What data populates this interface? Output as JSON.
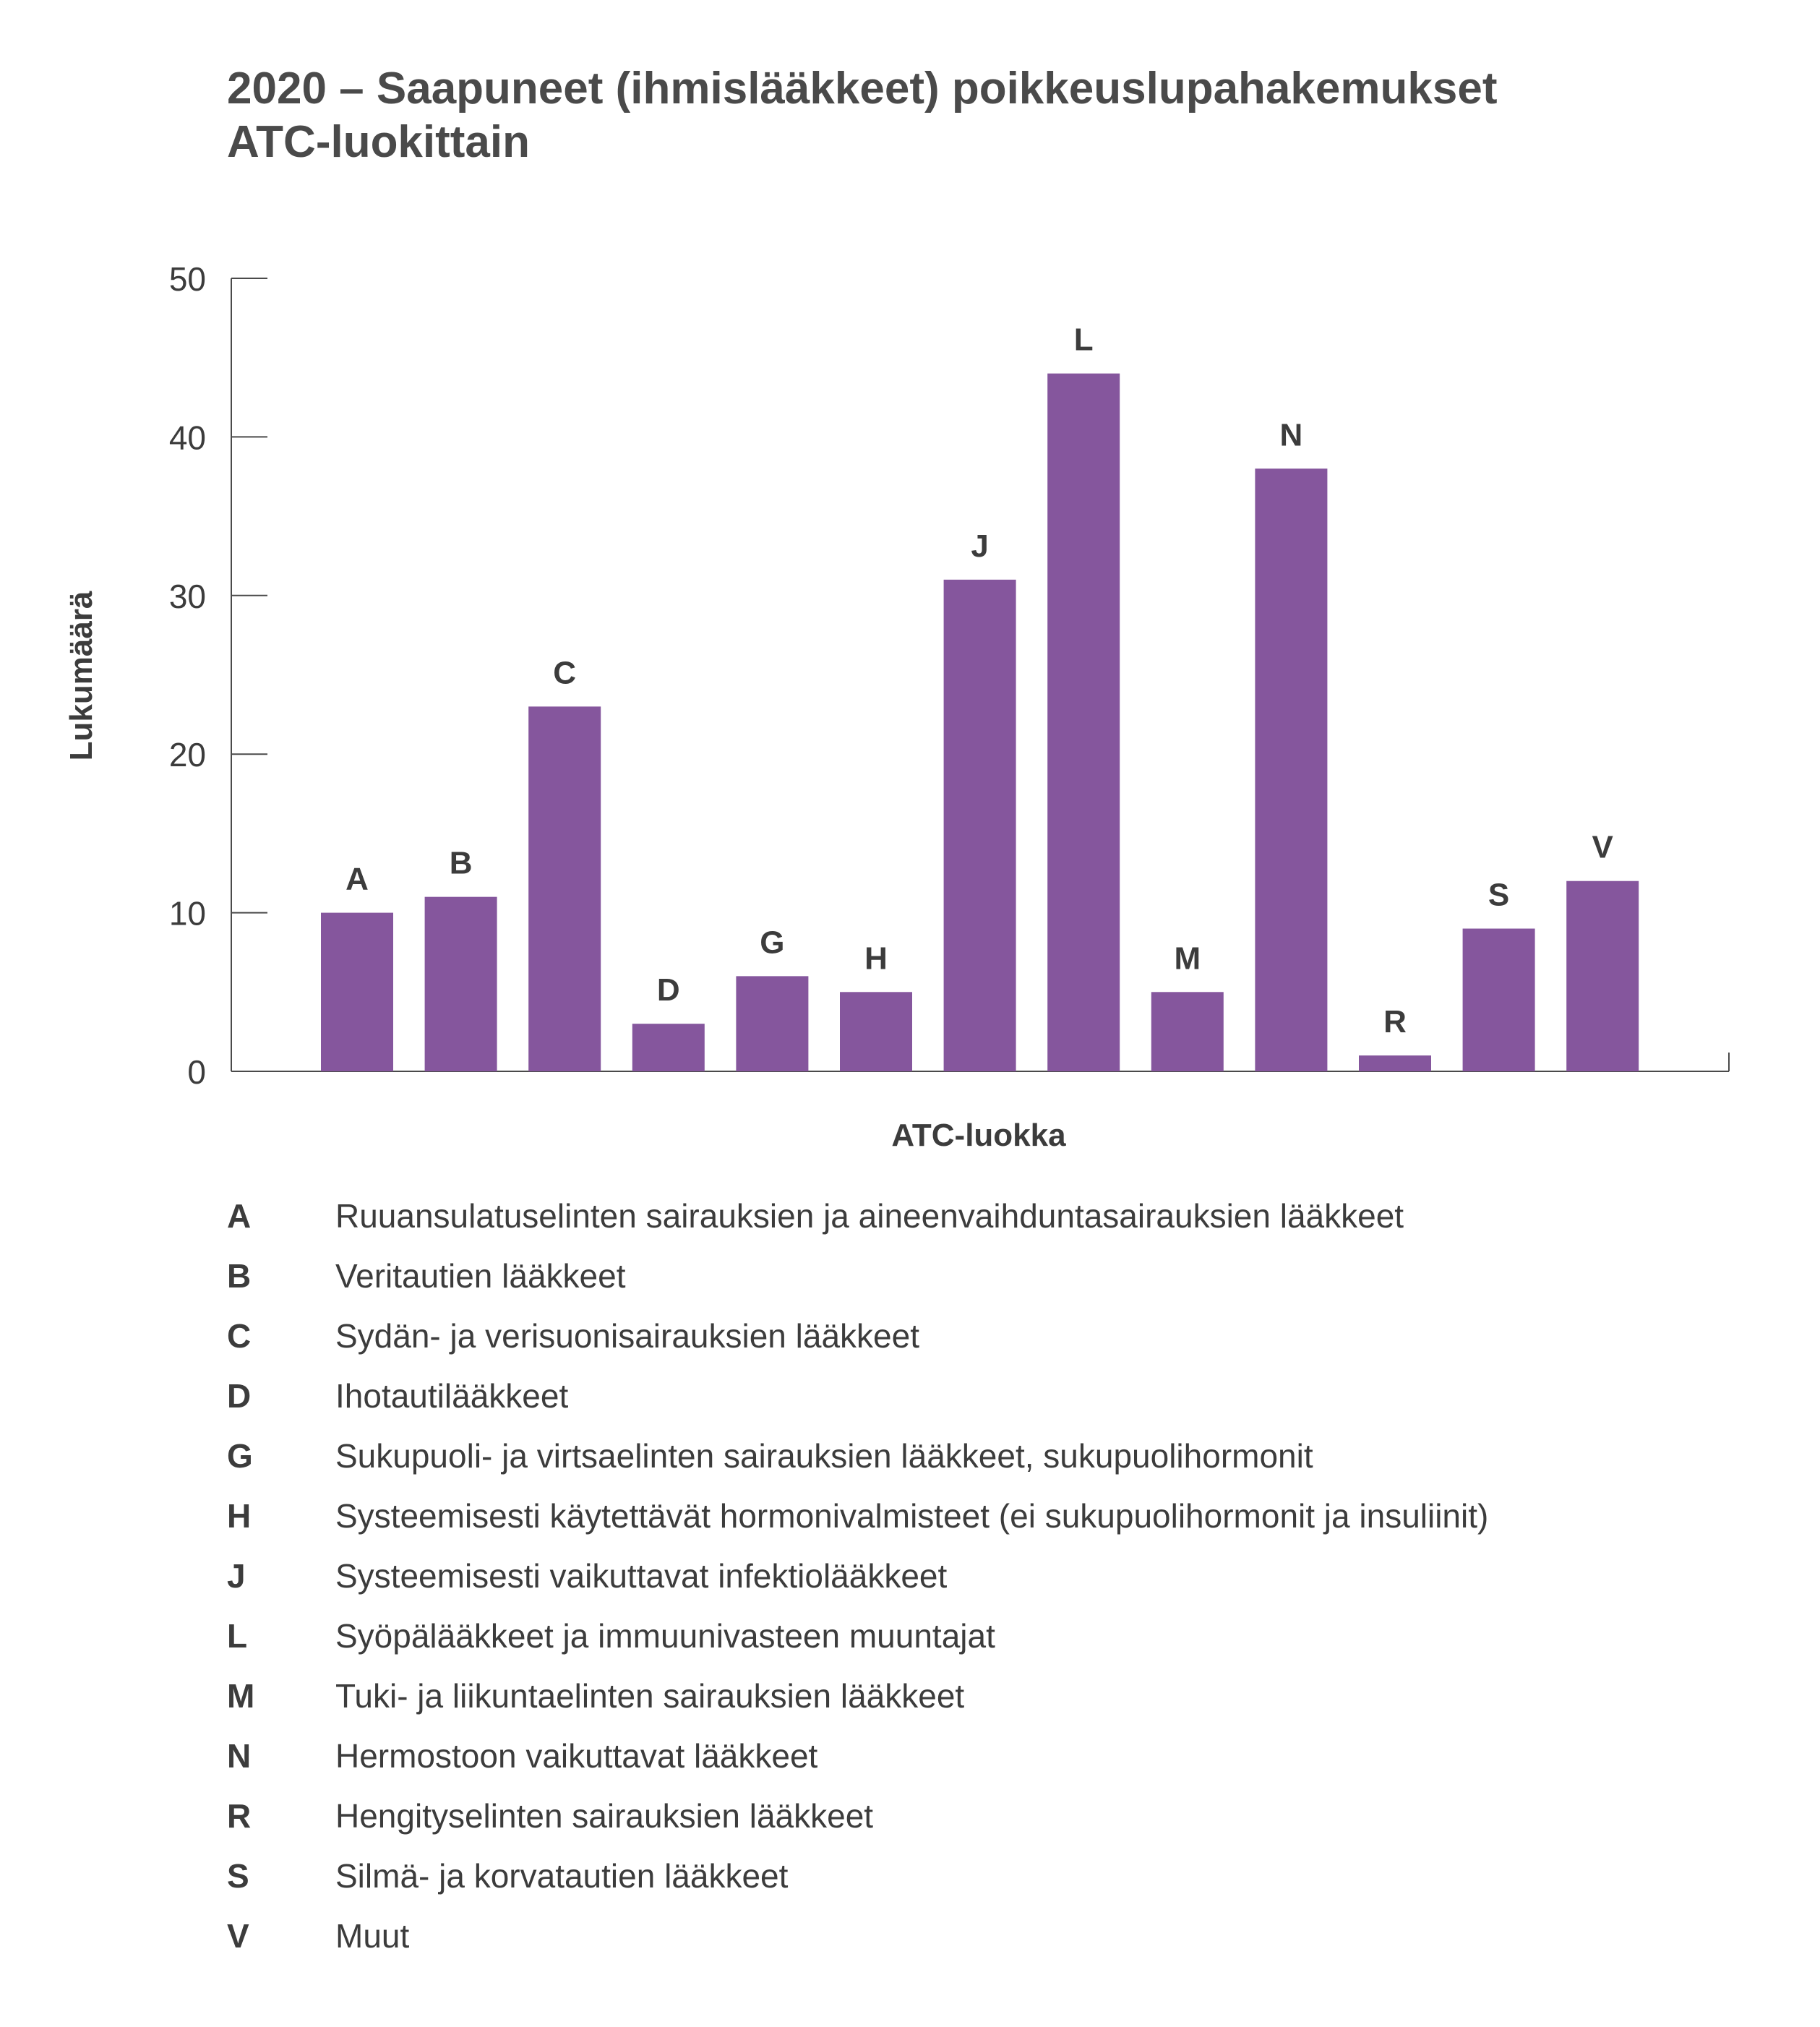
{
  "title_lines": [
    "2020 – Saapuneet (ihmislääkkeet) poikkeuslupahakemukset",
    "ATC-luokittain"
  ],
  "colors": {
    "bar": "#85569d",
    "axis": "#4a4a4a",
    "text": "#3c3c3c"
  },
  "chart_data": {
    "type": "bar",
    "title": "2020 – Saapuneet (ihmislääkkeet) poikkeuslupahakemukset ATC-luokittain",
    "xlabel": "ATC-luokka",
    "ylabel": "Lukumäärä",
    "categories": [
      "A",
      "B",
      "C",
      "D",
      "G",
      "H",
      "J",
      "L",
      "M",
      "N",
      "R",
      "S",
      "V"
    ],
    "values": [
      10,
      11,
      23,
      3,
      6,
      5,
      31,
      44,
      5,
      38,
      1,
      9,
      12
    ],
    "ylim": [
      0,
      50
    ],
    "yticks": [
      0,
      10,
      20,
      30,
      40,
      50
    ],
    "grid": false,
    "bar_labels": "category letter above each bar"
  },
  "legend": [
    {
      "code": "A",
      "text": "Ruuansulatuselinten sairauksien ja aineenvaihduntasairauksien lääkkeet"
    },
    {
      "code": "B",
      "text": "Veritautien lääkkeet"
    },
    {
      "code": "C",
      "text": "Sydän- ja verisuonisairauksien lääkkeet"
    },
    {
      "code": "D",
      "text": "Ihotautilääkkeet"
    },
    {
      "code": "G",
      "text": "Sukupuoli- ja virtsaelinten sairauksien lääkkeet, sukupuolihormonit"
    },
    {
      "code": "H",
      "text": "Systeemisesti käytettävät hormonivalmisteet (ei sukupuolihormonit ja insuliinit)"
    },
    {
      "code": "J",
      "text": "Systeemisesti vaikuttavat infektiolääkkeet"
    },
    {
      "code": "L",
      "text": "Syöpälääkkeet ja immuunivasteen muuntajat"
    },
    {
      "code": "M",
      "text": "Tuki- ja liikuntaelinten sairauksien lääkkeet"
    },
    {
      "code": "N",
      "text": "Hermostoon vaikuttavat lääkkeet"
    },
    {
      "code": "R",
      "text": "Hengityselinten sairauksien lääkkeet"
    },
    {
      "code": "S",
      "text": "Silmä- ja korvatautien lääkkeet"
    },
    {
      "code": "V",
      "text": "Muut"
    }
  ]
}
